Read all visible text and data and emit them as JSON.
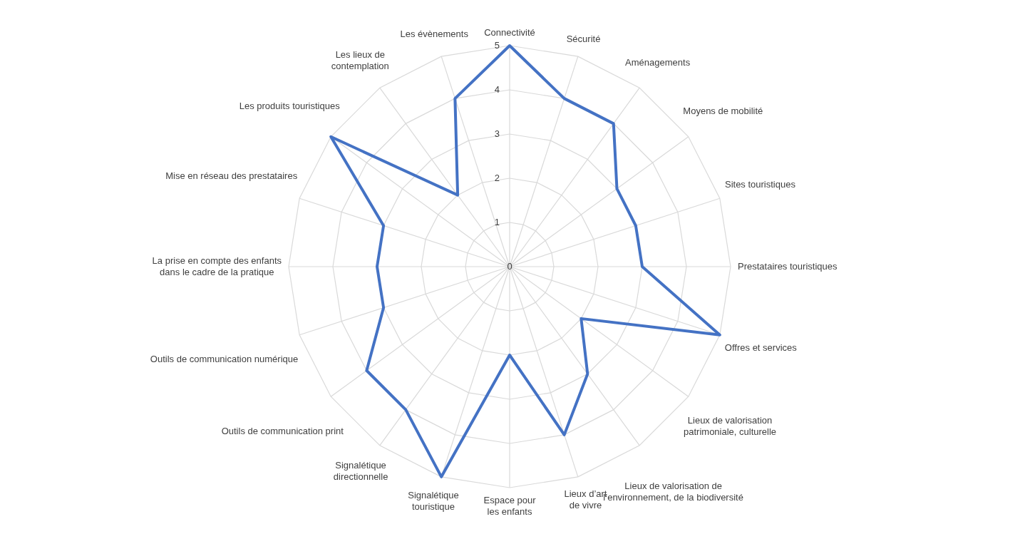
{
  "chart_data": {
    "type": "radar",
    "categories": [
      "Connectivité",
      "Sécurité",
      "Aménagements",
      "Moyens de mobilité",
      "Sites touristiques",
      "Prestataires touristiques",
      "Offres et services",
      "Lieux de valorisation patrimoniale, culturelle",
      "Lieux de valorisation de l’environnement, de la biodiversité",
      "Lieux d’art de vivre",
      "Espace pour les enfants",
      "Signalétique touristique",
      "Signalétique directionnelle",
      "Outils de communication print",
      "Outils de communication numérique",
      "La prise en compte des enfants dans le cadre de la pratique",
      "Mise en réseau des prestataires",
      "Les produits touristiques",
      "Les lieux de contemplation",
      "Les évènements"
    ],
    "series": [
      {
        "color": "#4472c4",
        "values": [
          5,
          4,
          4,
          3,
          3,
          3,
          5,
          2,
          3,
          4,
          2,
          5,
          4,
          4,
          3,
          3,
          3,
          5,
          2,
          4
        ]
      }
    ],
    "ylim": [
      0,
      5
    ],
    "yticks": [
      0,
      1,
      2,
      3,
      4,
      5
    ],
    "grid": true,
    "legend": false,
    "marker": "none"
  }
}
